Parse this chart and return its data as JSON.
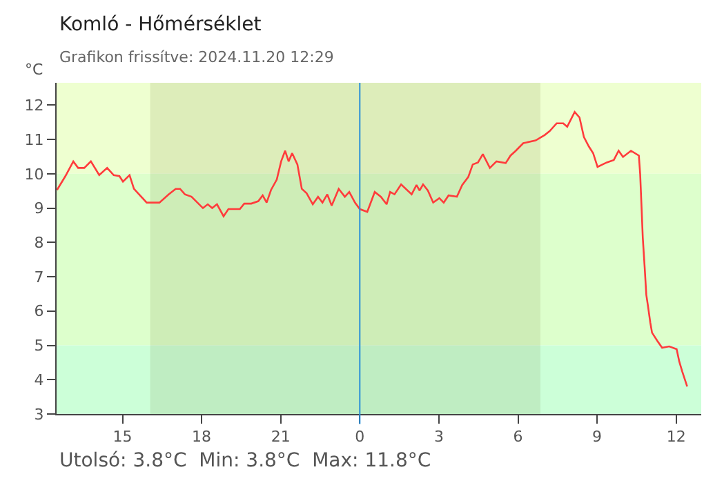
{
  "chart_data": {
    "type": "line",
    "title": "Komló - Hőmérséklet",
    "subtitle": "Grafikon frissítve: 2024.11.20 12:29",
    "ylabel": "°C",
    "annotations": [
      "Utolsó: 3.8°C  Min: 3.8°C  Max: 11.8°C"
    ],
    "x": [
      "2024-11-19T12:31",
      "2024-11-19T12:50",
      "2024-11-19T13:08",
      "2024-11-19T13:19",
      "2024-11-19T13:33",
      "2024-11-19T13:48",
      "2024-11-19T14:07",
      "2024-11-19T14:25",
      "2024-11-19T14:40",
      "2024-11-19T14:53",
      "2024-11-19T15:01",
      "2024-11-19T15:16",
      "2024-11-19T15:26",
      "2024-11-19T15:55",
      "2024-11-19T16:24",
      "2024-11-19T16:45",
      "2024-11-19T17:01",
      "2024-11-19T17:11",
      "2024-11-19T17:22",
      "2024-11-19T17:37",
      "2024-11-19T18:03",
      "2024-11-19T18:14",
      "2024-11-19T18:24",
      "2024-11-19T18:35",
      "2024-11-19T18:50",
      "2024-11-19T19:01",
      "2024-11-19T19:27",
      "2024-11-19T19:37",
      "2024-11-19T19:53",
      "2024-11-19T20:09",
      "2024-11-19T20:19",
      "2024-11-19T20:28",
      "2024-11-19T20:38",
      "2024-11-19T20:51",
      "2024-11-19T21:01",
      "2024-11-19T21:10",
      "2024-11-19T21:18",
      "2024-11-19T21:26",
      "2024-11-19T21:38",
      "2024-11-19T21:48",
      "2024-11-19T21:59",
      "2024-11-19T22:13",
      "2024-11-19T22:25",
      "2024-11-19T22:35",
      "2024-11-19T22:46",
      "2024-11-19T22:56",
      "2024-11-19T23:12",
      "2024-11-19T23:26",
      "2024-11-19T23:36",
      "2024-11-19T23:49",
      "2024-11-20T00:00",
      "2024-11-20T00:17",
      "2024-11-20T00:34",
      "2024-11-20T00:48",
      "2024-11-20T01:01",
      "2024-11-20T01:09",
      "2024-11-20T01:19",
      "2024-11-20T01:34",
      "2024-11-20T01:58",
      "2024-11-20T02:09",
      "2024-11-20T02:16",
      "2024-11-20T02:24",
      "2024-11-20T02:35",
      "2024-11-20T02:47",
      "2024-11-20T03:01",
      "2024-11-20T03:11",
      "2024-11-20T03:22",
      "2024-11-20T03:41",
      "2024-11-20T03:53",
      "2024-11-20T04:07",
      "2024-11-20T04:17",
      "2024-11-20T04:29",
      "2024-11-20T04:40",
      "2024-11-20T04:56",
      "2024-11-20T05:11",
      "2024-11-20T05:32",
      "2024-11-20T05:43",
      "2024-11-20T05:55",
      "2024-11-20T06:12",
      "2024-11-20T06:40",
      "2024-11-20T07:01",
      "2024-11-20T07:12",
      "2024-11-20T07:28",
      "2024-11-20T07:43",
      "2024-11-20T07:52",
      "2024-11-20T08:09",
      "2024-11-20T08:20",
      "2024-11-20T08:30",
      "2024-11-20T08:41",
      "2024-11-20T08:51",
      "2024-11-20T09:01",
      "2024-11-20T09:22",
      "2024-11-20T09:38",
      "2024-11-20T09:49",
      "2024-11-20T09:59",
      "2024-11-20T10:17",
      "2024-11-20T10:35",
      "2024-11-20T10:38",
      "2024-11-20T10:41",
      "2024-11-20T10:44",
      "2024-11-20T10:48",
      "2024-11-20T10:52",
      "2024-11-20T10:56",
      "2024-11-20T11:01",
      "2024-11-20T11:05",
      "2024-11-20T11:17",
      "2024-11-20T11:28",
      "2024-11-20T11:44",
      "2024-11-20T12:01",
      "2024-11-20T12:07",
      "2024-11-20T12:14",
      "2024-11-20T12:25"
    ],
    "series": [
      {
        "color": "#ff3b3b",
        "values": [
          9.53,
          9.93,
          10.36,
          10.17,
          10.17,
          10.36,
          9.96,
          10.17,
          9.96,
          9.93,
          9.77,
          9.96,
          9.56,
          9.16,
          9.16,
          9.4,
          9.56,
          9.56,
          9.4,
          9.33,
          9.0,
          9.11,
          9.0,
          9.11,
          8.76,
          8.97,
          8.97,
          9.13,
          9.13,
          9.2,
          9.37,
          9.16,
          9.53,
          9.83,
          10.36,
          10.67,
          10.36,
          10.6,
          10.27,
          9.56,
          9.43,
          9.11,
          9.33,
          9.16,
          9.4,
          9.07,
          9.56,
          9.33,
          9.47,
          9.16,
          8.97,
          8.89,
          9.47,
          9.33,
          9.11,
          9.47,
          9.4,
          9.69,
          9.4,
          9.67,
          9.51,
          9.69,
          9.51,
          9.16,
          9.29,
          9.16,
          9.37,
          9.33,
          9.67,
          9.91,
          10.27,
          10.33,
          10.57,
          10.17,
          10.36,
          10.31,
          10.53,
          10.67,
          10.89,
          10.97,
          11.13,
          11.24,
          11.47,
          11.47,
          11.37,
          11.8,
          11.64,
          11.07,
          10.8,
          10.6,
          10.2,
          10.33,
          10.4,
          10.67,
          10.49,
          10.67,
          10.53,
          10.0,
          9.07,
          8.13,
          7.33,
          6.47,
          6.13,
          5.67,
          5.37,
          5.13,
          4.93,
          4.97,
          4.89,
          4.53,
          4.23,
          3.8
        ]
      }
    ],
    "xlim": [
      "2024-11-19T12:30",
      "2024-11-20T12:57"
    ],
    "xticks": [
      {
        "value": "2024-11-19T15:00",
        "label": "15"
      },
      {
        "value": "2024-11-19T18:00",
        "label": "18"
      },
      {
        "value": "2024-11-19T21:00",
        "label": "21"
      },
      {
        "value": "2024-11-20T00:00",
        "label": "0"
      },
      {
        "value": "2024-11-20T03:00",
        "label": "3"
      },
      {
        "value": "2024-11-20T06:00",
        "label": "6"
      },
      {
        "value": "2024-11-20T09:00",
        "label": "9"
      },
      {
        "value": "2024-11-20T12:00",
        "label": "12"
      }
    ],
    "ylim": [
      3,
      12.65
    ],
    "yticks": [
      3,
      4,
      5,
      6,
      7,
      8,
      9,
      10,
      11,
      12
    ],
    "bands": [
      {
        "axis": "y",
        "from": 10,
        "to": 12.65,
        "color": "#eeffd0"
      },
      {
        "axis": "y",
        "from": 5,
        "to": 10,
        "color": "#ddffcc"
      },
      {
        "axis": "y",
        "from": 3,
        "to": 5,
        "color": "#ccffd8"
      },
      {
        "axis": "x",
        "from": "2024-11-19T16:03",
        "to": "2024-11-20T06:51",
        "color": "#4d4d00"
      }
    ],
    "ref_lines": [
      {
        "axis": "x",
        "value": "2024-11-20T00:00",
        "color": "#2a8fd8"
      }
    ],
    "grid": false,
    "marker": "none",
    "line_style": "solid"
  }
}
